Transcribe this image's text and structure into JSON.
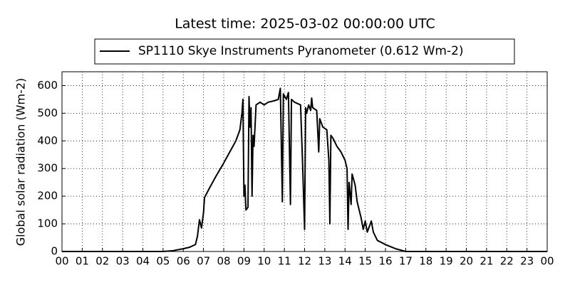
{
  "chart_data": {
    "type": "line",
    "title": "Latest time: 2025-03-02 00:00:00 UTC",
    "y_label": "Global solar radiation (Wm-2)",
    "legend": "upper center outside",
    "grid": true,
    "x": [
      0,
      5.0,
      5.5,
      6.0,
      6.3,
      6.6,
      6.7,
      6.8,
      6.9,
      7.0,
      7.05,
      7.3,
      7.6,
      8.0,
      8.3,
      8.6,
      8.7,
      8.8,
      8.9,
      8.95,
      9.0,
      9.05,
      9.1,
      9.2,
      9.25,
      9.3,
      9.35,
      9.4,
      9.45,
      9.5,
      9.6,
      9.8,
      10.0,
      10.2,
      10.5,
      10.7,
      10.8,
      10.9,
      10.95,
      11.1,
      11.2,
      11.3,
      11.35,
      11.5,
      11.8,
      11.9,
      12.0,
      12.05,
      12.1,
      12.2,
      12.3,
      12.35,
      12.4,
      12.6,
      12.7,
      12.75,
      12.9,
      13.1,
      13.2,
      13.25,
      13.3,
      13.4,
      13.6,
      13.8,
      14.0,
      14.1,
      14.15,
      14.2,
      14.3,
      14.35,
      14.5,
      14.6,
      14.8,
      14.9,
      15.0,
      15.1,
      15.2,
      15.3,
      15.4,
      15.6,
      16.0,
      16.5,
      17.0,
      24
    ],
    "series": [
      {
        "name": "SP1110 Skye Instruments Pyranometer (0.612 Wm-2)",
        "color": "#000000",
        "values": [
          0,
          0,
          3,
          10,
          15,
          25,
          55,
          115,
          85,
          140,
          195,
          230,
          270,
          320,
          360,
          400,
          420,
          440,
          500,
          550,
          200,
          240,
          150,
          160,
          560,
          450,
          520,
          200,
          420,
          380,
          530,
          540,
          530,
          540,
          545,
          550,
          590,
          180,
          570,
          550,
          575,
          170,
          550,
          540,
          530,
          320,
          80,
          520,
          500,
          530,
          510,
          555,
          520,
          510,
          360,
          480,
          450,
          440,
          330,
          100,
          420,
          410,
          380,
          360,
          330,
          300,
          80,
          250,
          170,
          280,
          240,
          180,
          120,
          80,
          110,
          70,
          90,
          110,
          70,
          40,
          25,
          10,
          0,
          0
        ]
      }
    ],
    "xlim": [
      0,
      24
    ],
    "xticks": [
      {
        "value": 0,
        "label": "00"
      },
      {
        "value": 1,
        "label": "01"
      },
      {
        "value": 2,
        "label": "02"
      },
      {
        "value": 3,
        "label": "03"
      },
      {
        "value": 4,
        "label": "04"
      },
      {
        "value": 5,
        "label": "05"
      },
      {
        "value": 6,
        "label": "06"
      },
      {
        "value": 7,
        "label": "07"
      },
      {
        "value": 8,
        "label": "08"
      },
      {
        "value": 9,
        "label": "09"
      },
      {
        "value": 10,
        "label": "10"
      },
      {
        "value": 11,
        "label": "11"
      },
      {
        "value": 12,
        "label": "12"
      },
      {
        "value": 13,
        "label": "13"
      },
      {
        "value": 14,
        "label": "14"
      },
      {
        "value": 15,
        "label": "15"
      },
      {
        "value": 16,
        "label": "16"
      },
      {
        "value": 17,
        "label": "17"
      },
      {
        "value": 18,
        "label": "18"
      },
      {
        "value": 19,
        "label": "19"
      },
      {
        "value": 20,
        "label": "20"
      },
      {
        "value": 21,
        "label": "21"
      },
      {
        "value": 22,
        "label": "22"
      },
      {
        "value": 23,
        "label": "23"
      },
      {
        "value": 24,
        "label": "00"
      }
    ],
    "ylim": [
      0,
      650
    ],
    "yticks": [
      0,
      100,
      200,
      300,
      400,
      500,
      600
    ]
  }
}
